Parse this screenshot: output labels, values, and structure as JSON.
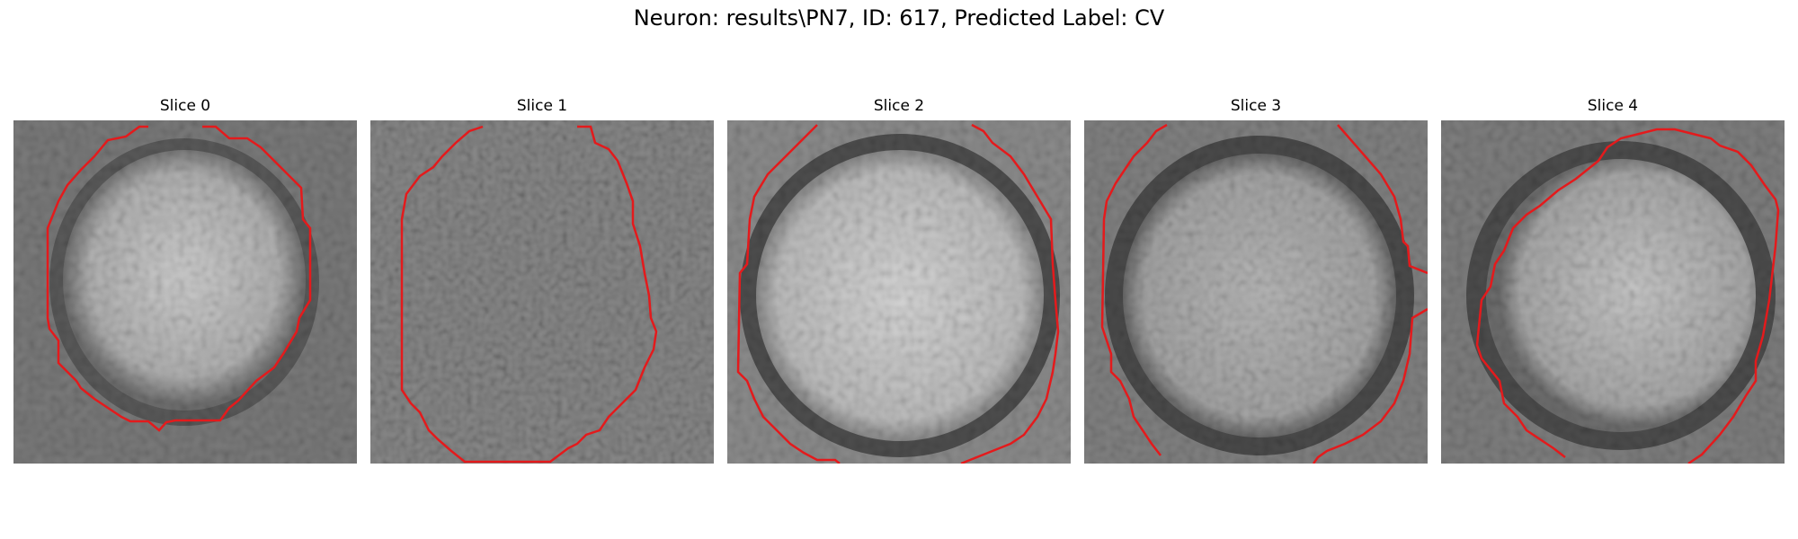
{
  "figure": {
    "title": "Neuron: results\\PN7, ID: 617, Predicted Label: CV"
  },
  "panels": [
    {
      "title": "Slice 0"
    },
    {
      "title": "Slice 1"
    },
    {
      "title": "Slice 2"
    },
    {
      "title": "Slice 3"
    },
    {
      "title": "Slice 4"
    }
  ],
  "colors": {
    "contour": "#e41a1c",
    "background": "#ffffff"
  },
  "image": {
    "colormap": "grayscale",
    "grid_cells": 29
  }
}
